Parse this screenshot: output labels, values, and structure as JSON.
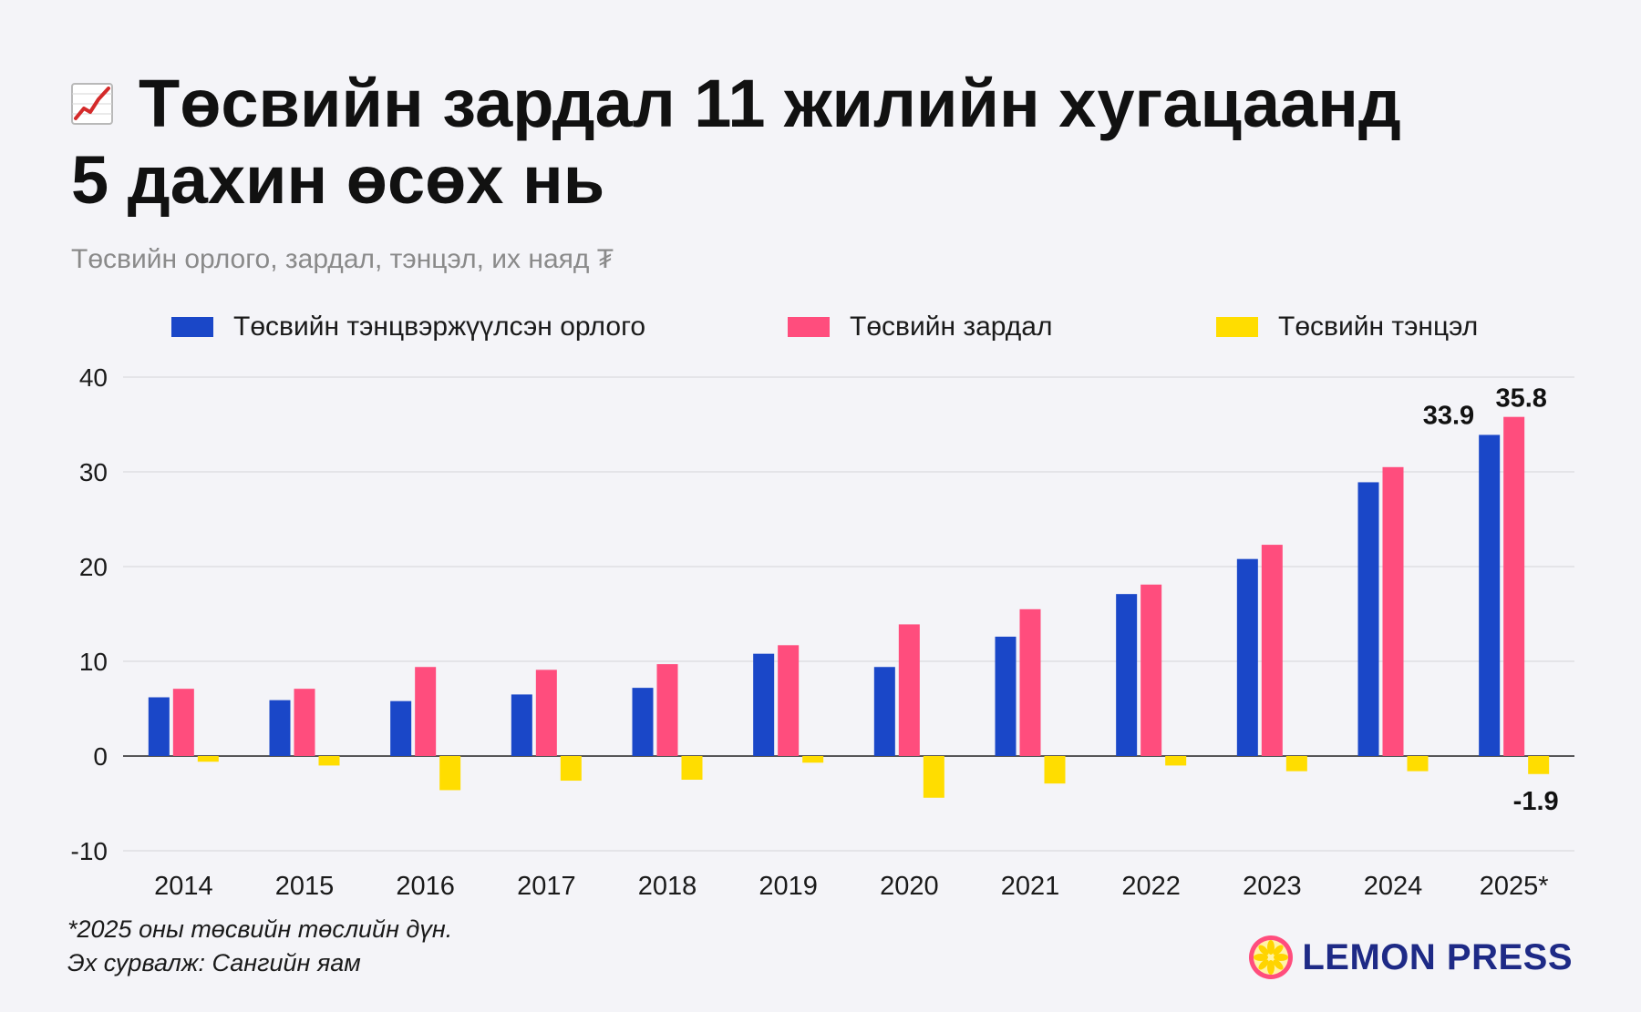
{
  "title": {
    "icon": "chart-increasing-icon",
    "line1": "Төсвийн зардал 11 жилийн хугацаанд",
    "line2": "5 дахин өсөх нь"
  },
  "subtitle": "Төсвийн орлого, зардал, тэнцэл, их наяд ₮",
  "legend": [
    {
      "label": "Төсвийн тэнцвэржүүлсэн орлого",
      "color": "#1a47c8"
    },
    {
      "label": "Төсвийн зардал",
      "color": "#ff4d7d"
    },
    {
      "label": "Төсвийн тэнцэл",
      "color": "#ffdd00"
    }
  ],
  "chart_data": {
    "type": "bar",
    "categories": [
      "2014",
      "2015",
      "2016",
      "2017",
      "2018",
      "2019",
      "2020",
      "2021",
      "2022",
      "2023",
      "2024",
      "2025*"
    ],
    "series": [
      {
        "name": "Төсвийн тэнцвэржүүлсэн орлого",
        "color": "#1a47c8",
        "values": [
          6.2,
          5.9,
          5.8,
          6.5,
          7.2,
          10.8,
          9.4,
          12.6,
          17.1,
          20.8,
          28.9,
          33.9
        ]
      },
      {
        "name": "Төсвийн зардал",
        "color": "#ff4d7d",
        "values": [
          7.1,
          7.1,
          9.4,
          9.1,
          9.7,
          11.7,
          13.9,
          15.5,
          18.1,
          22.3,
          30.5,
          35.8
        ]
      },
      {
        "name": "Төсвийн тэнцэл",
        "color": "#ffdd00",
        "values": [
          -0.6,
          -1.0,
          -3.6,
          -2.6,
          -2.5,
          -0.7,
          -4.4,
          -2.9,
          -1.0,
          -1.6,
          -1.6,
          -1.9
        ]
      }
    ],
    "data_labels": [
      {
        "series": 0,
        "index": 11,
        "text": "33.9"
      },
      {
        "series": 1,
        "index": 11,
        "text": "35.8"
      },
      {
        "series": 2,
        "index": 11,
        "text": "-1.9"
      }
    ],
    "yticks": [
      40,
      30,
      20,
      10,
      0,
      -10
    ],
    "ylim": [
      -10,
      40
    ],
    "grid": true,
    "legend_position": "top"
  },
  "footnote": {
    "line1": "*2025 оны төсвийн төслийн дүн.",
    "line2": "Эх сурвалж: Сангийн яам"
  },
  "brand": {
    "icon": "lemon-slice-icon",
    "name": "LEMON PRESS",
    "color": "#1e2a86"
  }
}
